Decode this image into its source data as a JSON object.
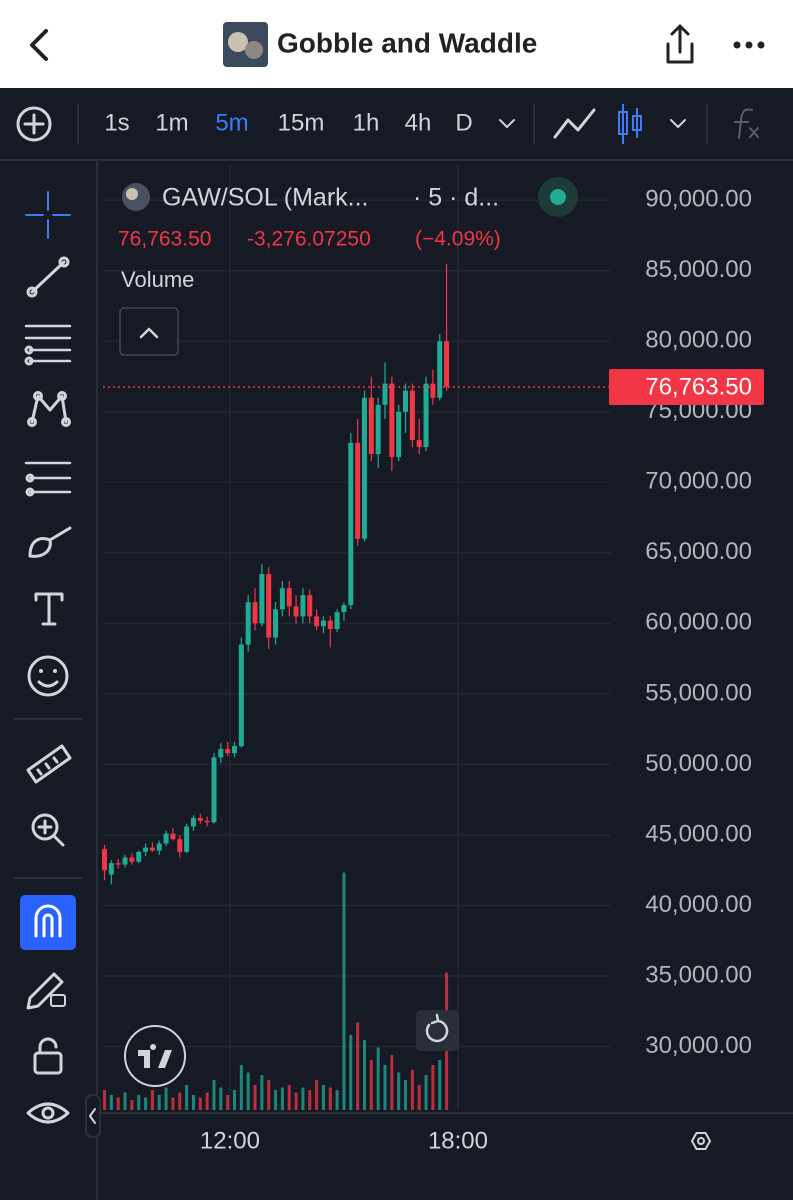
{
  "app_bar": {
    "title": "Gobble and Waddle"
  },
  "toolbar": {
    "timeframes": [
      "1s",
      "1m",
      "5m",
      "15m",
      "1h",
      "4h",
      "D"
    ],
    "active": "5m"
  },
  "legend": {
    "symbol": "GAW/SOL (Mark...",
    "interval": "· 5 · d...",
    "close": "76,763.50",
    "change": "-3,276.07250",
    "change_pct": "(−4.09%)",
    "indicator": "Volume"
  },
  "chart_data": {
    "type": "candlestick",
    "x": [
      8.7,
      8.88,
      9.06,
      9.24,
      9.42,
      9.6,
      9.78,
      9.96,
      10.14,
      10.32,
      10.5,
      10.68,
      10.86,
      11.04,
      11.22,
      11.4,
      11.58,
      11.76,
      11.94,
      12.12,
      12.3,
      12.48,
      12.66,
      12.84,
      13.02,
      13.2,
      13.38,
      13.56,
      13.74,
      13.92,
      14.1,
      14.28,
      14.46,
      14.64,
      14.82,
      15.0,
      15.18,
      15.36,
      15.54,
      15.72,
      15.9,
      16.08,
      16.26,
      16.44,
      16.62,
      16.8,
      16.98,
      17.16,
      17.34,
      17.52,
      17.7
    ],
    "open": [
      44000,
      42200,
      43000,
      42900,
      43400,
      43100,
      43800,
      44100,
      43900,
      44400,
      45100,
      44700,
      43800,
      45600,
      46200,
      46000,
      45900,
      50500,
      51100,
      50800,
      51300,
      58500,
      61500,
      60000,
      63500,
      59000,
      61000,
      62500,
      61200,
      60500,
      62000,
      60500,
      59800,
      60200,
      59600,
      60800,
      61300,
      72800,
      66000,
      76000,
      72000,
      75500,
      77000,
      71800,
      75000,
      76500,
      73000,
      72500,
      77000,
      76000,
      80000
    ],
    "high": [
      44300,
      43200,
      43300,
      43600,
      43700,
      43900,
      44400,
      44500,
      44600,
      45300,
      45500,
      45000,
      45800,
      46400,
      46500,
      46300,
      50800,
      51500,
      51600,
      51600,
      59000,
      62000,
      62500,
      64200,
      64000,
      61500,
      63000,
      63000,
      62000,
      62500,
      62400,
      61000,
      60500,
      60500,
      61000,
      61500,
      73500,
      74500,
      76500,
      77500,
      76000,
      78500,
      77500,
      75500,
      77000,
      77000,
      74500,
      77500,
      78000,
      80500,
      85500
    ],
    "low": [
      41800,
      41500,
      42600,
      42700,
      42900,
      43000,
      43500,
      43800,
      43600,
      44200,
      44600,
      43400,
      43700,
      45300,
      45800,
      45600,
      45800,
      50100,
      50600,
      50500,
      51200,
      58000,
      59500,
      59800,
      58200,
      58500,
      60500,
      60500,
      60000,
      60000,
      60000,
      59500,
      59300,
      58300,
      59400,
      60200,
      61000,
      65500,
      65800,
      71500,
      71000,
      74500,
      70800,
      71500,
      73500,
      72500,
      72000,
      72200,
      75500,
      75800,
      76500
    ],
    "close": [
      42500,
      43000,
      42900,
      43400,
      43100,
      43800,
      44100,
      43900,
      44400,
      45100,
      44700,
      43800,
      45600,
      46200,
      46000,
      45900,
      50500,
      51100,
      50800,
      51300,
      58500,
      61500,
      60000,
      63500,
      59000,
      61000,
      62500,
      61200,
      60500,
      62000,
      60500,
      59800,
      60200,
      59600,
      60800,
      61300,
      72800,
      66000,
      76000,
      72000,
      75500,
      77000,
      71800,
      75000,
      76500,
      73000,
      72500,
      77000,
      76000,
      80000,
      76763.5
    ],
    "volume": [
      8,
      6,
      5,
      7,
      4,
      6,
      5,
      8,
      6,
      9,
      5,
      7,
      10,
      6,
      5,
      7,
      12,
      9,
      6,
      8,
      18,
      15,
      10,
      14,
      12,
      8,
      9,
      10,
      7,
      9,
      8,
      12,
      10,
      9,
      8,
      95,
      30,
      35,
      28,
      20,
      25,
      18,
      22,
      15,
      12,
      16,
      10,
      14,
      18,
      20,
      55
    ],
    "volume_lim": [
      0,
      100
    ],
    "up_color": "#22ab94",
    "down_color": "#f23645",
    "xlim": [
      8.66,
      22.0
    ],
    "xticks": [
      {
        "value": 12,
        "label": "12:00"
      },
      {
        "value": 18,
        "label": "18:00"
      }
    ],
    "ylim": [
      25500,
      92500
    ],
    "yticks": [
      {
        "value": 30000,
        "label": "30,000.00"
      },
      {
        "value": 35000,
        "label": "35,000.00"
      },
      {
        "value": 40000,
        "label": "40,000.00"
      },
      {
        "value": 45000,
        "label": "45,000.00"
      },
      {
        "value": 50000,
        "label": "50,000.00"
      },
      {
        "value": 55000,
        "label": "55,000.00"
      },
      {
        "value": 60000,
        "label": "60,000.00"
      },
      {
        "value": 65000,
        "label": "65,000.00"
      },
      {
        "value": 70000,
        "label": "70,000.00"
      },
      {
        "value": 75000,
        "label": "75,000.00"
      },
      {
        "value": 80000,
        "label": "80,000.00"
      },
      {
        "value": 85000,
        "label": "85,000.00"
      },
      {
        "value": 90000,
        "label": "90,000.00"
      }
    ],
    "last_price": {
      "value": 76763.5,
      "label": "76,763.50"
    },
    "grid": true
  }
}
